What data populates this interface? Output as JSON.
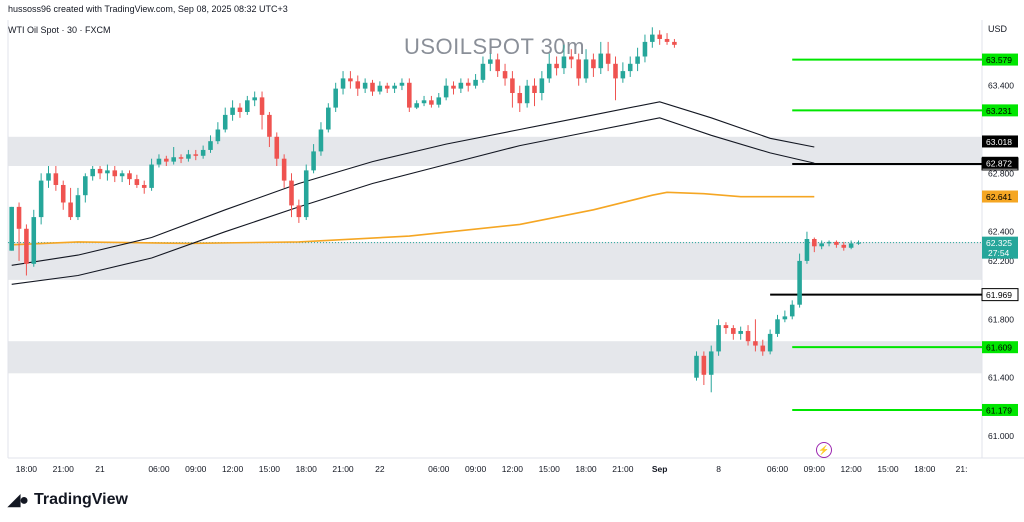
{
  "header": {
    "attribution": "hussoss96 created with TradingView.com, Sep 08, 2025 08:32 UTC+3",
    "symbol": "WTI Oil Spot · 30 · FXCM",
    "watermark": "USOILSPOT 30m",
    "currency": "USD"
  },
  "footer": {
    "brand": "TradingView"
  },
  "colors": {
    "bull": "#26a69a",
    "bear": "#ef5350",
    "zone": "#e0e3e8",
    "green_level": "#00e600",
    "ma_orange": "#f5a623",
    "band": "#131722",
    "axis_text": "#131722"
  },
  "chart_data": {
    "type": "candlestick",
    "title": "USOILSPOT 30m",
    "instrument": "WTI Oil Spot · 30 · FXCM",
    "ylim": [
      60.85,
      63.85
    ],
    "y_ticks": [
      "63.400",
      "62.800",
      "62.400",
      "62.200",
      "61.800",
      "61.400",
      "61.000"
    ],
    "y_tick_values": [
      63.4,
      62.8,
      62.4,
      62.2,
      61.8,
      61.4,
      61.0
    ],
    "x_tick_labels": [
      "18:00",
      "21:00",
      "21",
      "06:00",
      "09:00",
      "12:00",
      "15:00",
      "18:00",
      "21:00",
      "22",
      "06:00",
      "09:00",
      "12:00",
      "15:00",
      "18:00",
      "21:00",
      "Sep",
      "8",
      "06:00",
      "09:00",
      "12:00",
      "15:00",
      "18:00",
      "21:"
    ],
    "x_tick_slots": [
      3,
      8,
      13,
      21,
      26,
      31,
      36,
      41,
      46,
      51,
      59,
      64,
      69,
      74,
      79,
      84,
      89,
      97,
      105,
      110,
      115,
      120,
      125,
      130
    ],
    "n_slots": 132,
    "zones": [
      {
        "from": 62.85,
        "to": 63.05
      },
      {
        "from": 62.07,
        "to": 62.33
      },
      {
        "from": 61.43,
        "to": 61.65
      }
    ],
    "levels": [
      {
        "value": 63.579,
        "label": "63.579",
        "color": "#00e600",
        "from_slot": 107
      },
      {
        "value": 63.231,
        "label": "63.231",
        "color": "#00e600",
        "from_slot": 107
      },
      {
        "value": 62.864,
        "label": "62.864",
        "color": "#000000",
        "from_slot": 107
      },
      {
        "value": 61.969,
        "label": "61.969",
        "color": "#000000",
        "from_slot": 104
      },
      {
        "value": 61.609,
        "label": "61.609",
        "color": "#00e600",
        "from_slot": 107
      },
      {
        "value": 61.179,
        "label": "61.179",
        "color": "#00e600",
        "from_slot": 107
      }
    ],
    "price_tags": [
      {
        "value": 63.018,
        "label": "63.018",
        "bg": "#000000",
        "fg": "#ffffff"
      },
      {
        "value": 62.872,
        "label": "62.872",
        "bg": "#000000",
        "fg": "#ffffff"
      },
      {
        "value": 62.641,
        "label": "62.641",
        "bg": "#f5a623",
        "fg": "#000000"
      },
      {
        "value": 62.325,
        "label": "62.325",
        "bg": "#26a69a",
        "fg": "#ffffff",
        "sub": "27:54"
      }
    ],
    "last_price": 62.325,
    "moving_average": [
      [
        1,
        62.31
      ],
      [
        10,
        62.33
      ],
      [
        25,
        62.32
      ],
      [
        40,
        62.33
      ],
      [
        55,
        62.37
      ],
      [
        70,
        62.45
      ],
      [
        80,
        62.55
      ],
      [
        88,
        62.65
      ],
      [
        90,
        62.67
      ],
      [
        95,
        62.66
      ],
      [
        100,
        62.64
      ],
      [
        110,
        62.64
      ]
    ],
    "band_upper": [
      [
        1,
        62.17
      ],
      [
        10,
        62.24
      ],
      [
        20,
        62.36
      ],
      [
        30,
        62.55
      ],
      [
        40,
        62.73
      ],
      [
        50,
        62.88
      ],
      [
        60,
        63.0
      ],
      [
        70,
        63.1
      ],
      [
        80,
        63.2
      ],
      [
        89,
        63.29
      ],
      [
        96,
        63.18
      ],
      [
        104,
        63.04
      ],
      [
        110,
        62.98
      ]
    ],
    "band_lower": [
      [
        1,
        62.04
      ],
      [
        10,
        62.1
      ],
      [
        20,
        62.22
      ],
      [
        30,
        62.4
      ],
      [
        40,
        62.57
      ],
      [
        50,
        62.73
      ],
      [
        60,
        62.86
      ],
      [
        70,
        62.99
      ],
      [
        80,
        63.09
      ],
      [
        89,
        63.18
      ],
      [
        96,
        63.06
      ],
      [
        104,
        62.94
      ],
      [
        110,
        62.87
      ]
    ],
    "candles": [
      [
        1,
        62.27,
        62.57,
        62.27,
        62.57
      ],
      [
        2,
        62.57,
        62.42,
        62.2,
        62.6
      ],
      [
        3,
        62.42,
        62.18,
        62.1,
        62.45
      ],
      [
        4,
        62.18,
        62.5,
        62.16,
        62.55
      ],
      [
        5,
        62.5,
        62.75,
        62.45,
        62.8
      ],
      [
        6,
        62.75,
        62.8,
        62.7,
        62.85
      ],
      [
        7,
        62.8,
        62.72,
        62.68,
        62.85
      ],
      [
        8,
        62.72,
        62.6,
        62.55,
        62.75
      ],
      [
        9,
        62.6,
        62.5,
        62.48,
        62.7
      ],
      [
        10,
        62.5,
        62.65,
        62.48,
        62.7
      ],
      [
        11,
        62.65,
        62.78,
        62.6,
        62.8
      ],
      [
        12,
        62.78,
        62.83,
        62.75,
        62.85
      ],
      [
        13,
        62.83,
        62.8,
        62.76,
        62.85
      ],
      [
        14,
        62.8,
        62.82,
        62.75,
        62.86
      ],
      [
        15,
        62.82,
        62.78,
        62.74,
        62.85
      ],
      [
        16,
        62.78,
        62.8,
        62.74,
        62.82
      ],
      [
        17,
        62.8,
        62.76,
        62.72,
        62.82
      ],
      [
        18,
        62.76,
        62.72,
        62.7,
        62.79
      ],
      [
        19,
        62.72,
        62.7,
        62.66,
        62.75
      ],
      [
        20,
        62.7,
        62.86,
        62.68,
        62.9
      ],
      [
        21,
        62.86,
        62.9,
        62.84,
        62.93
      ],
      [
        22,
        62.9,
        62.88,
        62.85,
        62.92
      ],
      [
        23,
        62.88,
        62.91,
        62.86,
        62.98
      ],
      [
        24,
        62.91,
        62.9,
        62.87,
        62.93
      ],
      [
        25,
        62.9,
        62.93,
        62.88,
        62.96
      ],
      [
        26,
        62.93,
        62.92,
        62.89,
        62.96
      ],
      [
        27,
        62.92,
        62.96,
        62.9,
        62.99
      ],
      [
        28,
        62.96,
        63.02,
        62.94,
        63.06
      ],
      [
        29,
        63.02,
        63.1,
        63.0,
        63.15
      ],
      [
        30,
        63.1,
        63.2,
        63.08,
        63.25
      ],
      [
        31,
        63.2,
        63.25,
        63.16,
        63.3
      ],
      [
        32,
        63.25,
        63.22,
        63.18,
        63.28
      ],
      [
        33,
        63.22,
        63.3,
        63.2,
        63.33
      ],
      [
        34,
        63.3,
        63.32,
        63.26,
        63.36
      ],
      [
        35,
        63.32,
        63.2,
        63.1,
        63.36
      ],
      [
        36,
        63.2,
        63.05,
        62.98,
        63.22
      ],
      [
        37,
        63.05,
        62.9,
        62.85,
        63.08
      ],
      [
        38,
        62.9,
        62.75,
        62.7,
        62.93
      ],
      [
        39,
        62.75,
        62.58,
        62.5,
        62.8
      ],
      [
        40,
        62.58,
        62.5,
        62.46,
        62.62
      ],
      [
        41,
        62.5,
        62.82,
        62.48,
        62.86
      ],
      [
        42,
        62.82,
        62.95,
        62.8,
        63.0
      ],
      [
        43,
        62.95,
        63.1,
        62.92,
        63.15
      ],
      [
        44,
        63.1,
        63.25,
        63.08,
        63.28
      ],
      [
        45,
        63.25,
        63.38,
        63.22,
        63.42
      ],
      [
        46,
        63.38,
        63.45,
        63.34,
        63.5
      ],
      [
        47,
        63.45,
        63.43,
        63.38,
        63.5
      ],
      [
        48,
        63.43,
        63.38,
        63.33,
        63.47
      ],
      [
        49,
        63.38,
        63.42,
        63.35,
        63.45
      ],
      [
        50,
        63.42,
        63.36,
        63.33,
        63.44
      ],
      [
        51,
        63.36,
        63.4,
        63.34,
        63.43
      ],
      [
        52,
        63.4,
        63.38,
        63.35,
        63.42
      ],
      [
        53,
        63.38,
        63.4,
        63.35,
        63.42
      ],
      [
        54,
        63.4,
        63.42,
        63.37,
        63.45
      ],
      [
        55,
        63.42,
        63.25,
        63.22,
        63.45
      ],
      [
        56,
        63.25,
        63.28,
        63.24,
        63.3
      ],
      [
        57,
        63.28,
        63.3,
        63.26,
        63.33
      ],
      [
        58,
        63.3,
        63.27,
        63.25,
        63.33
      ],
      [
        59,
        63.27,
        63.32,
        63.25,
        63.35
      ],
      [
        60,
        63.32,
        63.4,
        63.3,
        63.45
      ],
      [
        61,
        63.4,
        63.38,
        63.34,
        63.43
      ],
      [
        62,
        63.38,
        63.42,
        63.35,
        63.45
      ],
      [
        63,
        63.42,
        63.4,
        63.36,
        63.45
      ],
      [
        64,
        63.4,
        63.44,
        63.38,
        63.48
      ],
      [
        65,
        63.44,
        63.55,
        63.42,
        63.6
      ],
      [
        66,
        63.55,
        63.58,
        63.5,
        63.62
      ],
      [
        67,
        63.58,
        63.5,
        63.46,
        63.62
      ],
      [
        68,
        63.5,
        63.45,
        63.4,
        63.55
      ],
      [
        69,
        63.45,
        63.35,
        63.25,
        63.5
      ],
      [
        70,
        63.35,
        63.28,
        63.22,
        63.4
      ],
      [
        71,
        63.28,
        63.4,
        63.25,
        63.44
      ],
      [
        72,
        63.4,
        63.35,
        63.26,
        63.45
      ],
      [
        73,
        63.35,
        63.45,
        63.3,
        63.5
      ],
      [
        74,
        63.45,
        63.55,
        63.42,
        63.62
      ],
      [
        75,
        63.55,
        63.52,
        63.47,
        63.6
      ],
      [
        76,
        63.52,
        63.6,
        63.48,
        63.68
      ],
      [
        77,
        63.6,
        63.58,
        63.52,
        63.65
      ],
      [
        78,
        63.58,
        63.45,
        63.4,
        63.62
      ],
      [
        79,
        63.45,
        63.58,
        63.42,
        63.65
      ],
      [
        80,
        63.58,
        63.52,
        63.46,
        63.62
      ],
      [
        81,
        63.52,
        63.62,
        63.48,
        63.7
      ],
      [
        82,
        63.62,
        63.55,
        63.5,
        63.7
      ],
      [
        83,
        63.55,
        63.45,
        63.3,
        63.6
      ],
      [
        84,
        63.45,
        63.5,
        63.42,
        63.56
      ],
      [
        85,
        63.5,
        63.55,
        63.46,
        63.6
      ],
      [
        86,
        63.55,
        63.6,
        63.5,
        63.66
      ],
      [
        87,
        63.6,
        63.7,
        63.56,
        63.75
      ],
      [
        88,
        63.7,
        63.75,
        63.66,
        63.8
      ],
      [
        89,
        63.75,
        63.72,
        63.68,
        63.78
      ],
      [
        90,
        63.72,
        63.7,
        63.68,
        63.76
      ],
      [
        91,
        63.7,
        63.68,
        63.66,
        63.72
      ],
      [
        94,
        61.4,
        61.55,
        61.38,
        61.58
      ],
      [
        95,
        61.55,
        61.42,
        61.35,
        61.58
      ],
      [
        96,
        61.42,
        61.58,
        61.3,
        61.62
      ],
      [
        97,
        61.58,
        61.76,
        61.55,
        61.8
      ],
      [
        98,
        61.76,
        61.74,
        61.7,
        61.78
      ],
      [
        99,
        61.74,
        61.7,
        61.66,
        61.76
      ],
      [
        100,
        61.7,
        61.72,
        61.66,
        61.75
      ],
      [
        101,
        61.72,
        61.65,
        61.62,
        61.76
      ],
      [
        102,
        61.65,
        61.62,
        61.58,
        61.8
      ],
      [
        103,
        61.62,
        61.58,
        61.55,
        61.66
      ],
      [
        104,
        61.58,
        61.7,
        61.56,
        61.73
      ],
      [
        105,
        61.7,
        61.8,
        61.68,
        61.83
      ],
      [
        106,
        61.8,
        61.82,
        61.78,
        61.86
      ],
      [
        107,
        61.82,
        61.9,
        61.8,
        61.93
      ],
      [
        108,
        61.9,
        62.2,
        61.88,
        62.25
      ],
      [
        109,
        62.2,
        62.35,
        62.18,
        62.4
      ],
      [
        110,
        62.35,
        62.3,
        62.26,
        62.36
      ],
      [
        111,
        62.3,
        62.32,
        62.28,
        62.34
      ],
      [
        112,
        62.32,
        62.33,
        62.3,
        62.34
      ],
      [
        113,
        62.33,
        62.31,
        62.29,
        62.34
      ],
      [
        114,
        62.31,
        62.29,
        62.27,
        62.33
      ],
      [
        115,
        62.29,
        62.32,
        62.28,
        62.34
      ],
      [
        116,
        62.32,
        62.325,
        62.31,
        62.34
      ]
    ]
  }
}
